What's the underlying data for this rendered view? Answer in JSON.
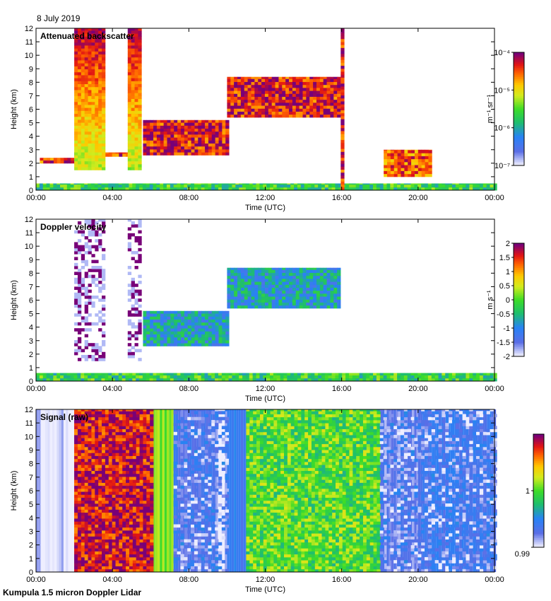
{
  "date_label": "8 July 2019",
  "footer": "Kumpula 1.5 micron Doppler Lidar",
  "chart_data": [
    {
      "type": "heatmap",
      "title": "Attenuated backscatter",
      "xlabel": "Time (UTC)",
      "ylabel": "Height (km)",
      "xlim": [
        0,
        24
      ],
      "ylim": [
        0,
        12
      ],
      "x_ticks": [
        "00:00",
        "04:00",
        "08:00",
        "12:00",
        "16:00",
        "20:00",
        "00:00"
      ],
      "y_ticks": [
        "0",
        "1",
        "2",
        "3",
        "4",
        "5",
        "6",
        "7",
        "8",
        "9",
        "10",
        "11",
        "12"
      ],
      "colorbar": {
        "label": "m⁻¹ sr⁻¹",
        "scale": "log",
        "range": [
          1e-07,
          0.0001
        ],
        "ticks": [
          "10⁻⁴",
          "10⁻⁵",
          "10⁻⁶",
          "10⁻⁷"
        ]
      },
      "features": [
        {
          "desc": "boundary layer",
          "t0": 0,
          "t1": 24,
          "h0": 0,
          "h1": 0.5
        },
        {
          "desc": "cloud layer",
          "t0": 0.2,
          "t1": 2.0,
          "h0": 2.0,
          "h1": 2.4
        },
        {
          "desc": "cloud layer",
          "t0": 2.0,
          "t1": 5.0,
          "h0": 2.5,
          "h1": 2.8
        },
        {
          "desc": "precipitation column",
          "t0": 2.0,
          "t1": 3.6,
          "h0": 1.5,
          "h1": 12
        },
        {
          "desc": "precipitation column",
          "t0": 4.8,
          "t1": 5.5,
          "h0": 1.5,
          "h1": 12
        },
        {
          "desc": "mid-level cloud",
          "t0": 5.6,
          "t1": 10.0,
          "h0": 2.6,
          "h1": 5.2
        },
        {
          "desc": "mid-level cloud",
          "t0": 10.0,
          "t1": 15.8,
          "h0": 5.4,
          "h1": 8.4
        },
        {
          "desc": "vertical line",
          "t0": 15.95,
          "t1": 16.05,
          "h0": 0,
          "h1": 12
        },
        {
          "desc": "low cloud",
          "t0": 18.2,
          "t1": 20.6,
          "h0": 1.0,
          "h1": 3.0
        }
      ]
    },
    {
      "type": "heatmap",
      "title": "Doppler velocity",
      "xlabel": "Time (UTC)",
      "ylabel": "Height (km)",
      "xlim": [
        0,
        24
      ],
      "ylim": [
        0,
        12
      ],
      "x_ticks": [
        "00:00",
        "04:00",
        "08:00",
        "12:00",
        "16:00",
        "20:00",
        "00:00"
      ],
      "y_ticks": [
        "0",
        "1",
        "2",
        "3",
        "4",
        "5",
        "6",
        "7",
        "8",
        "9",
        "10",
        "11",
        "12"
      ],
      "colorbar": {
        "label": "m s⁻¹",
        "scale": "linear",
        "range": [
          -2,
          2
        ],
        "ticks": [
          "2",
          "1.5",
          "1",
          "0.5",
          "0",
          "-0.5",
          "-1",
          "-1.5",
          "-2"
        ]
      },
      "features": [
        {
          "desc": "noise columns",
          "t0": 2.0,
          "t1": 3.6,
          "h0": 1.5,
          "h1": 12
        },
        {
          "desc": "noise columns",
          "t0": 4.8,
          "t1": 5.5,
          "h0": 1.5,
          "h1": 12
        },
        {
          "desc": "cloud layer velocity",
          "t0": 5.6,
          "t1": 10.0,
          "h0": 2.6,
          "h1": 5.2
        },
        {
          "desc": "cloud layer velocity",
          "t0": 10.0,
          "t1": 15.8,
          "h0": 5.4,
          "h1": 8.4
        },
        {
          "desc": "boundary layer velocity",
          "t0": 0,
          "t1": 24,
          "h0": 0,
          "h1": 0.6
        }
      ]
    },
    {
      "type": "heatmap",
      "title": "Signal (raw)",
      "xlabel": "Time (UTC)",
      "ylabel": "Height (km)",
      "xlim": [
        0,
        24
      ],
      "ylim": [
        0,
        12
      ],
      "x_ticks": [
        "00:00",
        "04:00",
        "08:00",
        "12:00",
        "16:00",
        "20:00",
        "00:00"
      ],
      "y_ticks": [
        "0",
        "1",
        "2",
        "3",
        "4",
        "5",
        "6",
        "7",
        "8",
        "9",
        "10",
        "11",
        "12"
      ],
      "colorbar": {
        "label": "",
        "scale": "linear",
        "range": [
          0.99,
          1.01
        ],
        "ticks": [
          "1",
          "0.99"
        ]
      },
      "features": [
        {
          "desc": "high signal",
          "t0": 2.0,
          "t1": 6.0,
          "h0": 0,
          "h1": 12
        },
        {
          "desc": "low signal",
          "t0": 7.2,
          "t1": 10.0,
          "h0": 0,
          "h1": 12
        },
        {
          "desc": "moderate signal",
          "t0": 11.0,
          "t1": 18.0,
          "h0": 0,
          "h1": 12
        },
        {
          "desc": "low signal",
          "t0": 18.0,
          "t1": 24,
          "h0": 0,
          "h1": 12
        }
      ]
    }
  ]
}
